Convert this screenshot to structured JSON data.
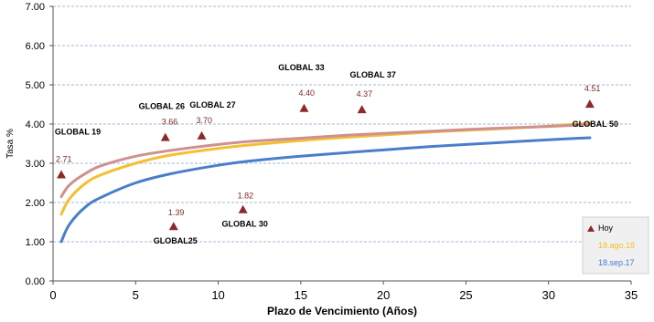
{
  "chart_data": {
    "type": "line",
    "xlabel": "Plazo de Vencimiento  (Años)",
    "ylabel": "Tasa %",
    "xlim": [
      0,
      35
    ],
    "ylim": [
      0,
      7
    ],
    "x_ticks": [
      "0",
      "5",
      "10",
      "15",
      "20",
      "25",
      "30",
      "35"
    ],
    "y_ticks": [
      "0.00",
      "1.00",
      "2.00",
      "3.00",
      "4.00",
      "5.00",
      "6.00",
      "7.00"
    ],
    "grid": true,
    "legend_position": "bottom-right",
    "series": [
      {
        "name": "18.sep.17",
        "color": "#4a7ec9",
        "x": [
          0.5,
          1,
          2,
          3,
          5,
          7,
          10,
          12,
          15,
          18,
          20,
          23,
          25,
          28,
          30,
          32.5
        ],
        "y": [
          1.0,
          1.45,
          1.9,
          2.15,
          2.5,
          2.72,
          2.95,
          3.06,
          3.18,
          3.28,
          3.34,
          3.43,
          3.48,
          3.55,
          3.6,
          3.65
        ]
      },
      {
        "name": "18.ago.18",
        "color": "#f2c030",
        "x": [
          0.5,
          1,
          2,
          3,
          5,
          7,
          10,
          12,
          15,
          18,
          20,
          23,
          25,
          28,
          30,
          32.5
        ],
        "y": [
          1.7,
          2.1,
          2.5,
          2.72,
          3.0,
          3.2,
          3.38,
          3.47,
          3.58,
          3.67,
          3.72,
          3.8,
          3.84,
          3.9,
          3.95,
          4.02
        ]
      },
      {
        "name": "",
        "color": "#d09090",
        "x": [
          0.5,
          1,
          2,
          3,
          5,
          7,
          10,
          12,
          15,
          18,
          20,
          23,
          25,
          28,
          30,
          32.5
        ],
        "y": [
          2.15,
          2.45,
          2.75,
          2.95,
          3.18,
          3.32,
          3.48,
          3.56,
          3.64,
          3.72,
          3.76,
          3.82,
          3.86,
          3.91,
          3.94,
          3.99
        ]
      }
    ],
    "points": {
      "name": "Hoy",
      "color": "#8b2a2a",
      "items": [
        {
          "label": "GLOBAL 19",
          "x": 0.5,
          "y": 2.71,
          "value": "2.71"
        },
        {
          "label": "GLOBAL25",
          "x": 7.3,
          "y": 1.39,
          "value": "1.39"
        },
        {
          "label": "GLOBAL 26",
          "x": 6.8,
          "y": 3.66,
          "value": "3.66"
        },
        {
          "label": "GLOBAL 27",
          "x": 9.0,
          "y": 3.7,
          "value": "3.70"
        },
        {
          "label": "GLOBAL 30",
          "x": 11.5,
          "y": 1.82,
          "value": "1.82"
        },
        {
          "label": "GLOBAL 33",
          "x": 15.2,
          "y": 4.4,
          "value": "4.40"
        },
        {
          "label": "GLOBAL 37",
          "x": 18.7,
          "y": 4.37,
          "value": "4.37"
        },
        {
          "label": "GLOBAL 50",
          "x": 32.5,
          "y": 4.51,
          "value": "4.51"
        }
      ]
    },
    "legend": [
      {
        "label": "Hoy",
        "color": "#000000",
        "marker": "triangle",
        "marker_color": "#8b2a2a"
      },
      {
        "label": "18.ago.18",
        "color": "#f2c030"
      },
      {
        "label": "18.sep.17",
        "color": "#4a7ec9"
      }
    ]
  }
}
